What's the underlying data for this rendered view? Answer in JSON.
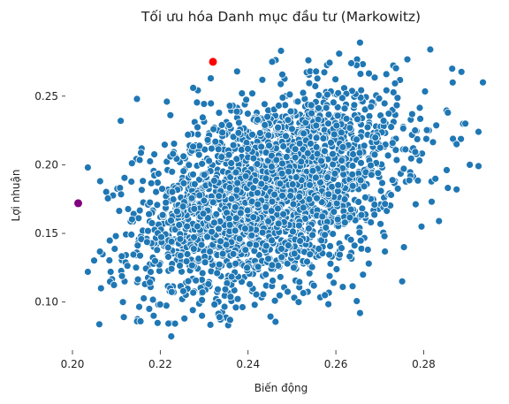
{
  "chart_data": {
    "type": "scatter",
    "title": "Tối ưu hóa Danh mục đầu tư (Markowitz)",
    "xlabel": "Biến động",
    "ylabel": "Lợi nhuận",
    "xlim": [
      0.2,
      0.294
    ],
    "ylim": [
      0.065,
      0.293
    ],
    "xticks": [
      0.2,
      0.22,
      0.24,
      0.26,
      0.28
    ],
    "yticks": [
      0.1,
      0.15,
      0.2,
      0.25
    ],
    "xtick_labels": [
      "0.20",
      "0.22",
      "0.24",
      "0.26",
      "0.28"
    ],
    "ytick_labels": [
      "0.10",
      "0.15",
      "0.20",
      "0.25"
    ],
    "grid": false,
    "series": [
      {
        "color": "#1f77b4",
        "edgecolor": "#ffffff",
        "points": [
          [
            0.2035,
            0.198
          ],
          [
            0.2035,
            0.122
          ],
          [
            0.2065,
            0.11
          ],
          [
            0.2063,
            0.188
          ],
          [
            0.2087,
            0.122
          ],
          [
            0.211,
            0.232
          ],
          [
            0.2115,
            0.1
          ],
          [
            0.2117,
            0.089
          ],
          [
            0.2147,
            0.248
          ],
          [
            0.2155,
            0.086
          ],
          [
            0.2175,
            0.095
          ],
          [
            0.2185,
            0.09
          ],
          [
            0.2215,
            0.246
          ],
          [
            0.2225,
            0.075
          ],
          [
            0.2255,
            0.088
          ],
          [
            0.2275,
            0.256
          ],
          [
            0.2295,
            0.09
          ],
          [
            0.2315,
            0.263
          ],
          [
            0.2335,
            0.089
          ],
          [
            0.2375,
            0.268
          ],
          [
            0.2415,
            0.098
          ],
          [
            0.2455,
            0.275
          ],
          [
            0.2475,
            0.283
          ],
          [
            0.2515,
            0.1
          ],
          [
            0.2555,
            0.268
          ],
          [
            0.2575,
            0.105
          ],
          [
            0.2595,
            0.114
          ],
          [
            0.2635,
            0.274
          ],
          [
            0.2655,
            0.289
          ],
          [
            0.2655,
            0.092
          ],
          [
            0.2675,
            0.128
          ],
          [
            0.2715,
            0.266
          ],
          [
            0.2755,
            0.14
          ],
          [
            0.2795,
            0.155
          ],
          [
            0.2815,
            0.284
          ],
          [
            0.2835,
            0.159
          ],
          [
            0.2865,
            0.27
          ],
          [
            0.2875,
            0.182
          ],
          [
            0.2895,
            0.23
          ],
          [
            0.2905,
            0.2
          ],
          [
            0.2925,
            0.199
          ],
          [
            0.2925,
            0.224
          ],
          [
            0.2935,
            0.26
          ],
          [
            0.2875,
            0.215
          ],
          [
            0.2855,
            0.238
          ]
        ]
      },
      {
        "name": "",
        "color": "#ff0000",
        "points": [
          [
            0.232,
            0.275
          ]
        ]
      },
      {
        "name": "",
        "color": "#800080",
        "points": [
          [
            0.2013,
            0.172
          ]
        ]
      }
    ]
  }
}
